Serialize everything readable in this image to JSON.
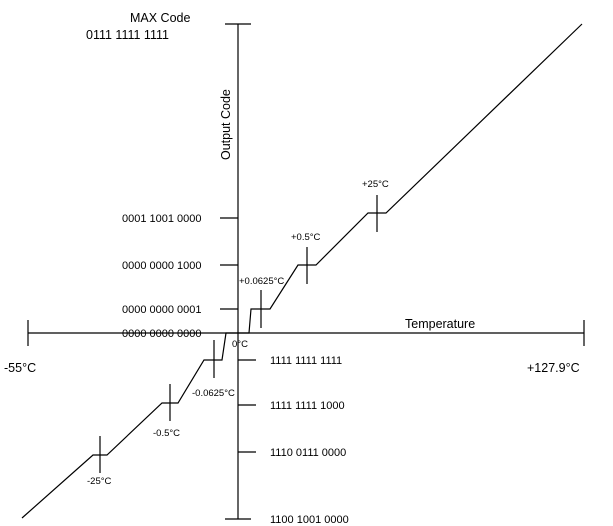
{
  "diagram": {
    "max_code_title": "MAX Code",
    "max_code_value": "0111 1111 1111",
    "y_axis_label": "Output Code",
    "x_axis_label": "Temperature",
    "x_min_label": "-55°C",
    "x_max_label": "+127.9°C",
    "zero_label": "0°C",
    "codes_left": [
      "0001 1001 0000",
      "0000 0000 1000",
      "0000 0000 0001",
      "0000 0000 0000"
    ],
    "codes_right": [
      "1111 1111 1111",
      "1111 1111 1000",
      "1110 0111 0000",
      "1100 1001 0000"
    ],
    "points": {
      "p25": "+25°C",
      "p05": "+0.5°C",
      "p0625": "+0.0625°C",
      "m0625": "-0.0625°C",
      "m05": "-0.5°C",
      "m25": "-25°C"
    }
  }
}
